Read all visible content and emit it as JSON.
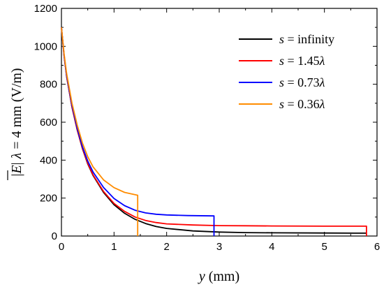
{
  "chart_data": {
    "type": "line",
    "xlabel": {
      "italic": "y",
      "rest": " (mm)"
    },
    "ylabel": {
      "prefix": "|",
      "ebar": "E",
      "mid": "|  ",
      "lambda": "λ",
      "rest": " = 4 mm (V/m)"
    },
    "xlim": [
      0,
      6
    ],
    "ylim": [
      0,
      1200
    ],
    "x_ticks": [
      "0",
      "1",
      "2",
      "3",
      "4",
      "5",
      "6"
    ],
    "y_ticks": [
      "0",
      "200",
      "400",
      "600",
      "800",
      "1000",
      "1200"
    ],
    "legend_position": "top-right",
    "series": [
      {
        "legend": {
          "s": "s",
          "rest": " = infinity",
          "lambda": ""
        },
        "color": "#000000",
        "x": [
          0,
          0.05,
          0.1,
          0.2,
          0.3,
          0.4,
          0.5,
          0.6,
          0.8,
          1.0,
          1.2,
          1.4,
          1.6,
          1.8,
          2.0,
          2.5,
          3.0,
          3.5,
          4.0,
          5.0,
          5.8
        ],
        "y": [
          1100,
          950,
          840,
          680,
          560,
          460,
          380,
          320,
          230,
          165,
          120,
          88,
          66,
          50,
          40,
          27,
          21,
          18,
          17,
          16,
          15
        ]
      },
      {
        "legend": {
          "s": "s",
          "rest": " = 1.45",
          "lambda": "λ"
        },
        "color": "#ff0000",
        "x": [
          0,
          0.05,
          0.1,
          0.2,
          0.3,
          0.4,
          0.5,
          0.6,
          0.8,
          1.0,
          1.2,
          1.4,
          1.6,
          1.8,
          2.0,
          2.5,
          3.0,
          3.5,
          4.0,
          5.0,
          5.8,
          5.8
        ],
        "y": [
          1100,
          950,
          840,
          680,
          560,
          462,
          383,
          323,
          235,
          172,
          130,
          100,
          82,
          71,
          64,
          58,
          55,
          54,
          53,
          52,
          52,
          0
        ]
      },
      {
        "legend": {
          "s": "s",
          "rest": " = 0.73",
          "lambda": "λ"
        },
        "color": "#0000ff",
        "x": [
          0,
          0.05,
          0.1,
          0.2,
          0.3,
          0.4,
          0.5,
          0.6,
          0.8,
          1.0,
          1.2,
          1.4,
          1.6,
          1.8,
          2.0,
          2.4,
          2.9,
          2.9
        ],
        "y": [
          1100,
          955,
          845,
          688,
          568,
          470,
          395,
          338,
          256,
          198,
          160,
          136,
          122,
          115,
          111,
          108,
          106,
          0
        ]
      },
      {
        "legend": {
          "s": "s",
          "rest": " = 0.36",
          "lambda": "λ"
        },
        "color": "#ff8c00",
        "x": [
          0,
          0.05,
          0.1,
          0.2,
          0.3,
          0.4,
          0.5,
          0.6,
          0.8,
          1.0,
          1.2,
          1.45,
          1.45
        ],
        "y": [
          1100,
          960,
          855,
          700,
          585,
          490,
          418,
          365,
          296,
          255,
          230,
          215,
          0
        ]
      }
    ]
  }
}
